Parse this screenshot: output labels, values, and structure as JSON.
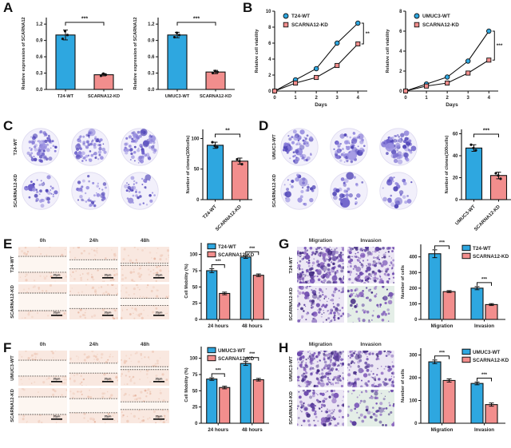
{
  "panels": {
    "A": {
      "label": "A"
    },
    "B": {
      "label": "B"
    },
    "C": {
      "label": "C"
    },
    "D": {
      "label": "D"
    },
    "E": {
      "label": "E"
    },
    "F": {
      "label": "F"
    },
    "G": {
      "label": "G"
    },
    "H": {
      "label": "H"
    }
  },
  "colors": {
    "wt_blue": "#2ea7e0",
    "kd_pink": "#f28e8d",
    "axis": "#111111",
    "colony_stain": "#6a5ec9",
    "crystal_violet": "#5b3f9e"
  },
  "chart_data": [
    {
      "id": "A1",
      "panel": "A",
      "type": "bar",
      "title": "",
      "ylabel": "Relative expression of SCARNA12",
      "categories": [
        "T24-WT",
        "SCARNA12-KD"
      ],
      "values": [
        1.0,
        0.27
      ],
      "errors": [
        0.09,
        0.02
      ],
      "points": [
        [
          0.93,
          1.0,
          1.07
        ],
        [
          0.25,
          0.27,
          0.29
        ]
      ],
      "yticks": [
        0.0,
        0.3,
        0.6,
        0.9,
        1.2
      ],
      "ylim": [
        0,
        1.32
      ],
      "colors": [
        "#2ea7e0",
        "#f28e8d"
      ],
      "sig": [
        {
          "pair": [
            0,
            1
          ],
          "label": "***"
        }
      ]
    },
    {
      "id": "A2",
      "panel": "A",
      "type": "bar",
      "title": "",
      "ylabel": "Relative expression of SCARNA12",
      "categories": [
        "UMUC3-WT",
        "SCARNA12-KD"
      ],
      "values": [
        1.0,
        0.32
      ],
      "errors": [
        0.05,
        0.03
      ],
      "points": [
        [
          0.96,
          1.0,
          1.04
        ],
        [
          0.3,
          0.32,
          0.34
        ]
      ],
      "yticks": [
        0.0,
        0.3,
        0.6,
        0.9,
        1.2
      ],
      "ylim": [
        0,
        1.32
      ],
      "colors": [
        "#2ea7e0",
        "#f28e8d"
      ],
      "sig": [
        {
          "pair": [
            0,
            1
          ],
          "label": "***"
        }
      ]
    },
    {
      "id": "B1",
      "panel": "B",
      "type": "line",
      "ylabel": "Relative cell viability",
      "xlabel": "Days",
      "x": [
        0,
        1,
        2,
        3,
        4
      ],
      "xticks": [
        0,
        1,
        2,
        3,
        4
      ],
      "yticks": [
        0,
        2,
        4,
        6,
        8,
        10
      ],
      "ylim": [
        0,
        10
      ],
      "series": [
        {
          "name": "T24-WT",
          "marker": "circle",
          "color": "#2ea7e0",
          "values": [
            0,
            1.4,
            2.8,
            6.0,
            8.5
          ]
        },
        {
          "name": "SCARNA12-KD",
          "marker": "square",
          "color": "#f28e8d",
          "values": [
            0,
            1.0,
            1.7,
            3.2,
            5.9
          ]
        }
      ],
      "sig_end": "**"
    },
    {
      "id": "B2",
      "panel": "B",
      "type": "line",
      "ylabel": "Relative cell viability",
      "xlabel": "Days",
      "x": [
        0,
        1,
        2,
        3,
        4
      ],
      "xticks": [
        0,
        1,
        2,
        3,
        4
      ],
      "yticks": [
        0,
        2,
        4,
        6,
        8
      ],
      "ylim": [
        0,
        8
      ],
      "series": [
        {
          "name": "UMUC3-WT",
          "marker": "circle",
          "color": "#2ea7e0",
          "values": [
            0,
            0.7,
            1.4,
            3.0,
            6.0
          ]
        },
        {
          "name": "SCARNA12-KD",
          "marker": "square",
          "color": "#f28e8d",
          "values": [
            0,
            0.5,
            0.8,
            1.8,
            3.1
          ]
        }
      ],
      "sig_end": "***"
    },
    {
      "id": "C",
      "panel": "C",
      "type": "bar",
      "ylabel": "Number of clones(100cells)",
      "categories": [
        "T24-WT",
        "SCARNA12-KD"
      ],
      "values": [
        89,
        63
      ],
      "errors": [
        5,
        5
      ],
      "points": [
        [
          94,
          86,
          88
        ],
        [
          66,
          58,
          63
        ]
      ],
      "yticks": [
        0,
        50,
        100
      ],
      "ylim": [
        0,
        115
      ],
      "colors": [
        "#2ea7e0",
        "#f28e8d"
      ],
      "rotate_xlabels": true,
      "sig": [
        {
          "pair": [
            0,
            1
          ],
          "label": "**"
        }
      ]
    },
    {
      "id": "D",
      "panel": "D",
      "type": "bar",
      "ylabel": "Number of clones(100cells)",
      "categories": [
        "UMUC3-WT",
        "SCARNA12-KD"
      ],
      "values": [
        47,
        22
      ],
      "errors": [
        3,
        3
      ],
      "points": [
        [
          50,
          45,
          47
        ],
        [
          24,
          19,
          22
        ]
      ],
      "yticks": [
        0,
        20,
        40,
        60
      ],
      "ylim": [
        0,
        64
      ],
      "colors": [
        "#2ea7e0",
        "#f28e8d"
      ],
      "rotate_xlabels": true,
      "sig": [
        {
          "pair": [
            0,
            1
          ],
          "label": "***"
        }
      ]
    },
    {
      "id": "E",
      "panel": "E",
      "type": "groupbar",
      "ylabel": "Cell Mobility (%)",
      "categories": [
        "24 hours",
        "48 hours"
      ],
      "yticks": [
        0,
        25,
        50,
        75,
        100
      ],
      "ylim": [
        0,
        118
      ],
      "series": [
        {
          "name": "T24-WT",
          "color": "#2ea7e0",
          "values": [
            75,
            96
          ],
          "errors": [
            3,
            2
          ]
        },
        {
          "name": "SCARNA12-KD",
          "color": "#f28e8d",
          "values": [
            40,
            68
          ],
          "errors": [
            2,
            2
          ]
        }
      ],
      "group_sig": [
        "***",
        "***"
      ],
      "legend_pos": "left"
    },
    {
      "id": "F",
      "panel": "F",
      "type": "groupbar",
      "ylabel": "Cell Mobility (%)",
      "categories": [
        "24 hours",
        "48 hours"
      ],
      "yticks": [
        0,
        25,
        50,
        75,
        100
      ],
      "ylim": [
        0,
        118
      ],
      "series": [
        {
          "name": "UMUC3-WT",
          "color": "#2ea7e0",
          "values": [
            68,
            92
          ],
          "errors": [
            2,
            3
          ]
        },
        {
          "name": "SCARNA12-KD",
          "color": "#f28e8d",
          "values": [
            55,
            67
          ],
          "errors": [
            2,
            2
          ]
        }
      ],
      "group_sig": [
        "***",
        "***"
      ],
      "legend_pos": "left"
    },
    {
      "id": "G",
      "panel": "G",
      "type": "groupbar",
      "ylabel": "Number of cells",
      "categories": [
        "Migration",
        "Invasion"
      ],
      "yticks": [
        0,
        100,
        200,
        300,
        400
      ],
      "ylim": [
        0,
        480
      ],
      "series": [
        {
          "name": "T24-WT",
          "color": "#2ea7e0",
          "values": [
            420,
            200
          ],
          "errors": [
            25,
            10
          ]
        },
        {
          "name": "SCARNA12-KD",
          "color": "#f28e8d",
          "values": [
            178,
            95
          ],
          "errors": [
            6,
            6
          ]
        }
      ],
      "group_sig": [
        "***",
        "***"
      ],
      "legend_pos": "right"
    },
    {
      "id": "H",
      "panel": "H",
      "type": "groupbar",
      "ylabel": "Number of cells",
      "categories": [
        "Migration",
        "Invasion"
      ],
      "yticks": [
        0,
        100,
        200,
        300
      ],
      "ylim": [
        0,
        330
      ],
      "series": [
        {
          "name": "UMUC3-WT",
          "color": "#2ea7e0",
          "values": [
            270,
            175
          ],
          "errors": [
            8,
            6
          ]
        },
        {
          "name": "SCARNA12-KD",
          "color": "#f28e8d",
          "values": [
            188,
            82
          ],
          "errors": [
            7,
            7
          ]
        }
      ],
      "group_sig": [
        "***",
        "***"
      ],
      "legend_pos": "right"
    }
  ],
  "microscopy": {
    "C": {
      "kind": "colony",
      "rows": [
        "T24-WT",
        "SCARNA12-KD"
      ],
      "cols": 3,
      "row_density": [
        0.95,
        0.5
      ]
    },
    "D": {
      "kind": "colony",
      "rows": [
        "UMUC3-WT",
        "SCARNA12-KD"
      ],
      "cols": 3,
      "row_density": [
        0.8,
        0.38
      ]
    },
    "E": {
      "kind": "wound",
      "rows": [
        "T24-WT",
        "SCARNA12-KD"
      ],
      "cols": [
        "0h",
        "24h",
        "48h"
      ],
      "gaps": [
        [
          0.45,
          0.26,
          0.06
        ],
        [
          0.5,
          0.38,
          0.2
        ]
      ],
      "scalebar": "20μm"
    },
    "F": {
      "kind": "wound",
      "rows": [
        "UMUC3-WT",
        "SCARNA12-KD"
      ],
      "cols": [
        "0h",
        "24h",
        "48h"
      ],
      "gaps": [
        [
          0.45,
          0.28,
          0.08
        ],
        [
          0.5,
          0.4,
          0.22
        ]
      ],
      "scalebar": "20μm"
    },
    "G": {
      "kind": "transwell",
      "rows": [
        "T24-WT",
        "SCARNA12-KD"
      ],
      "cols": [
        "Migration",
        "Invasion"
      ],
      "density": [
        [
          1.0,
          0.72
        ],
        [
          0.55,
          0.32
        ]
      ]
    },
    "H": {
      "kind": "transwell",
      "rows": [
        "UMUC3-WT",
        "SCARNA12-KD"
      ],
      "cols": [
        "Migration",
        "Invasion"
      ],
      "density": [
        [
          0.92,
          0.6
        ],
        [
          0.5,
          0.3
        ]
      ]
    }
  }
}
